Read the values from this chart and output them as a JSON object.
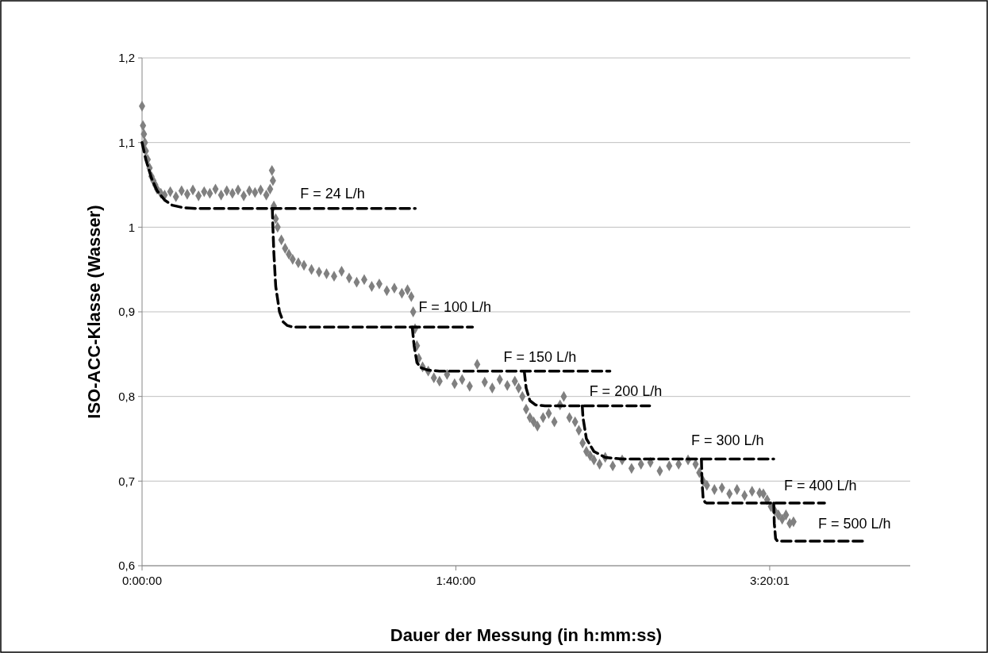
{
  "chart_data": {
    "type": "scatter",
    "xlabel": "Dauer der Messung (in h:mm:ss)",
    "ylabel": "ISO-ACC-Klasse (Wasser)",
    "xlim": [
      0,
      4.08
    ],
    "xticks": [
      {
        "value": 0,
        "label": "0:00:00"
      },
      {
        "value": 1.6667,
        "label": "1:40:00"
      },
      {
        "value": 3.3336,
        "label": "3:20:01"
      }
    ],
    "ylim": [
      0.6,
      1.2
    ],
    "yticks": [
      {
        "value": 0.6,
        "label": "0,6"
      },
      {
        "value": 0.7,
        "label": "0,7"
      },
      {
        "value": 0.8,
        "label": "0,8"
      },
      {
        "value": 0.9,
        "label": "0,9"
      },
      {
        "value": 1,
        "label": "1"
      },
      {
        "value": 1.1,
        "label": "1,1"
      },
      {
        "value": 1.2,
        "label": "1,2"
      }
    ],
    "grid": "y",
    "legend": false,
    "series": [
      {
        "color": "#808080",
        "marker": "diamond",
        "x": [
          0,
          0.005,
          0.01,
          0.015,
          0.02,
          0.03,
          0.04,
          0.05,
          0.06,
          0.07,
          0.08,
          0.1,
          0.12,
          0.15,
          0.18,
          0.21,
          0.24,
          0.27,
          0.3,
          0.33,
          0.36,
          0.39,
          0.42,
          0.45,
          0.48,
          0.51,
          0.54,
          0.57,
          0.6,
          0.63,
          0.66,
          0.68,
          0.69,
          0.695,
          0.7,
          0.71,
          0.72,
          0.74,
          0.76,
          0.78,
          0.8,
          0.83,
          0.86,
          0.9,
          0.94,
          0.98,
          1.02,
          1.06,
          1.1,
          1.14,
          1.18,
          1.22,
          1.26,
          1.3,
          1.34,
          1.38,
          1.41,
          1.43,
          1.44,
          1.45,
          1.46,
          1.47,
          1.49,
          1.52,
          1.55,
          1.58,
          1.62,
          1.66,
          1.7,
          1.74,
          1.78,
          1.82,
          1.86,
          1.9,
          1.94,
          1.98,
          2.0,
          2.02,
          2.04,
          2.06,
          2.08,
          2.1,
          2.13,
          2.16,
          2.19,
          2.22,
          2.24,
          2.27,
          2.3,
          2.32,
          2.34,
          2.36,
          2.38,
          2.4,
          2.43,
          2.46,
          2.5,
          2.55,
          2.6,
          2.65,
          2.7,
          2.75,
          2.8,
          2.85,
          2.9,
          2.94,
          2.96,
          2.98,
          3.0,
          3.04,
          3.08,
          3.12,
          3.16,
          3.2,
          3.24,
          3.28,
          3.3,
          3.32,
          3.34,
          3.36,
          3.38,
          3.4,
          3.42,
          3.44,
          3.46
        ],
        "values": [
          1.143,
          1.12,
          1.11,
          1.1,
          1.09,
          1.08,
          1.07,
          1.06,
          1.055,
          1.05,
          1.045,
          1.04,
          1.038,
          1.042,
          1.036,
          1.043,
          1.039,
          1.044,
          1.037,
          1.042,
          1.04,
          1.045,
          1.038,
          1.043,
          1.04,
          1.044,
          1.037,
          1.043,
          1.041,
          1.044,
          1.038,
          1.045,
          1.067,
          1.055,
          1.025,
          1.01,
          1.0,
          0.985,
          0.975,
          0.968,
          0.962,
          0.958,
          0.955,
          0.95,
          0.947,
          0.945,
          0.942,
          0.948,
          0.94,
          0.935,
          0.938,
          0.93,
          0.933,
          0.925,
          0.928,
          0.922,
          0.926,
          0.918,
          0.9,
          0.88,
          0.86,
          0.845,
          0.835,
          0.83,
          0.822,
          0.818,
          0.826,
          0.815,
          0.82,
          0.812,
          0.838,
          0.817,
          0.81,
          0.82,
          0.813,
          0.818,
          0.81,
          0.8,
          0.785,
          0.775,
          0.77,
          0.765,
          0.775,
          0.78,
          0.77,
          0.79,
          0.8,
          0.775,
          0.77,
          0.76,
          0.745,
          0.735,
          0.73,
          0.725,
          0.72,
          0.728,
          0.718,
          0.725,
          0.715,
          0.72,
          0.722,
          0.712,
          0.718,
          0.72,
          0.725,
          0.72,
          0.71,
          0.7,
          0.695,
          0.69,
          0.692,
          0.685,
          0.69,
          0.683,
          0.688,
          0.686,
          0.685,
          0.678,
          0.67,
          0.665,
          0.66,
          0.655,
          0.66,
          0.65,
          0.652
        ]
      },
      {
        "type": "line",
        "name": "F = 24 L/h",
        "color": "#000000",
        "line_style": "dashed",
        "x": [
          0,
          0.02,
          0.05,
          0.08,
          0.12,
          0.16,
          0.22,
          0.3,
          1.451
        ],
        "values": [
          1.1,
          1.08,
          1.058,
          1.043,
          1.032,
          1.026,
          1.023,
          1.022,
          1.022
        ]
      },
      {
        "type": "line",
        "name": "F = 100 L/h",
        "color": "#000000",
        "line_style": "dashed",
        "x": [
          0.692,
          0.695,
          0.7,
          0.71,
          0.73,
          0.75,
          0.77,
          0.8,
          1.755
        ],
        "values": [
          1.022,
          1.0,
          0.97,
          0.93,
          0.9,
          0.888,
          0.884,
          0.882,
          0.882
        ]
      },
      {
        "type": "line",
        "name": "F = 150 L/h",
        "color": "#000000",
        "line_style": "dashed",
        "x": [
          1.435,
          1.445,
          1.46,
          1.48,
          1.52,
          1.58,
          2.485
        ],
        "values": [
          0.882,
          0.86,
          0.84,
          0.834,
          0.831,
          0.83,
          0.83
        ]
      },
      {
        "type": "line",
        "name": "F = 200 L/h",
        "color": "#000000",
        "line_style": "dashed",
        "x": [
          2.03,
          2.04,
          2.06,
          2.09,
          2.14,
          2.696
        ],
        "values": [
          0.83,
          0.81,
          0.795,
          0.79,
          0.789,
          0.789
        ]
      },
      {
        "type": "line",
        "name": "F = 300 L/h",
        "color": "#000000",
        "line_style": "dashed",
        "x": [
          2.338,
          2.342,
          2.36,
          2.4,
          2.46,
          2.55,
          3.355
        ],
        "values": [
          0.789,
          0.775,
          0.75,
          0.735,
          0.728,
          0.726,
          0.726
        ]
      },
      {
        "type": "line",
        "name": "F = 400 L/h",
        "color": "#000000",
        "line_style": "dashed",
        "x": [
          2.971,
          2.974,
          2.98,
          2.99,
          3.0,
          3.625
        ],
        "values": [
          0.726,
          0.7,
          0.68,
          0.675,
          0.674,
          0.674
        ]
      },
      {
        "type": "line",
        "name": "F = 500 L/h",
        "color": "#000000",
        "line_style": "dashed",
        "x": [
          3.355,
          3.358,
          3.365,
          3.375,
          3.84
        ],
        "values": [
          0.674,
          0.65,
          0.632,
          0.629,
          0.629
        ]
      }
    ]
  }
}
